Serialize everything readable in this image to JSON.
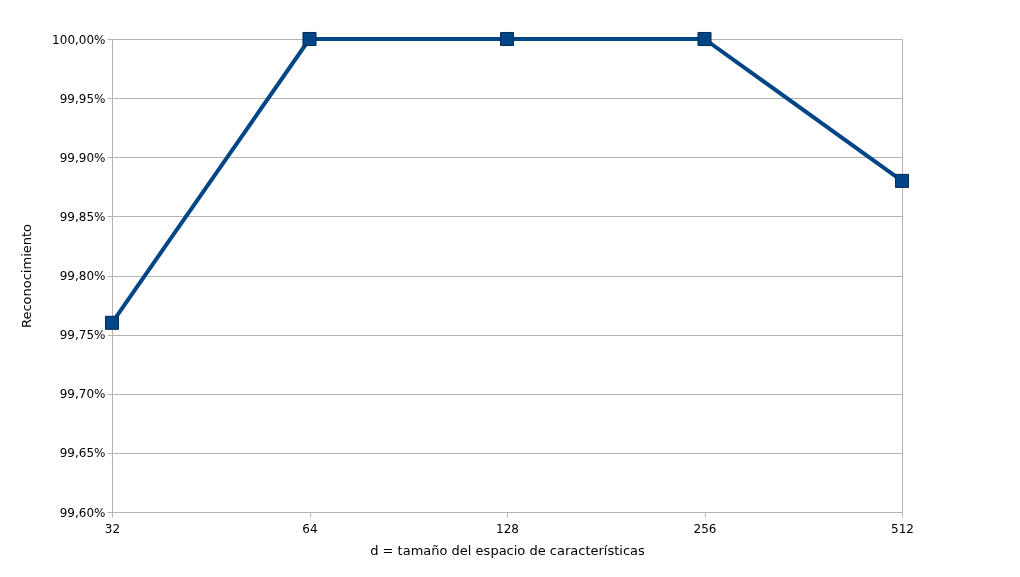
{
  "chart_data": {
    "type": "line",
    "xlabel": "d = tamaño del espacio de características",
    "ylabel": "Reconocimiento",
    "categories": [
      "32",
      "64",
      "128",
      "256",
      "512"
    ],
    "series": [
      {
        "color": "#004586",
        "values": [
          99.76,
          100.0,
          100.0,
          100.0,
          99.88
        ]
      }
    ],
    "ylim": [
      99.6,
      100.0
    ],
    "yticks": [
      {
        "value": 99.6,
        "label": "99,60%"
      },
      {
        "value": 99.65,
        "label": "99,65%"
      },
      {
        "value": 99.7,
        "label": "99,70%"
      },
      {
        "value": 99.75,
        "label": "99,75%"
      },
      {
        "value": 99.8,
        "label": "99,80%"
      },
      {
        "value": 99.85,
        "label": "99,85%"
      },
      {
        "value": 99.9,
        "label": "99,90%"
      },
      {
        "value": 99.95,
        "label": "99,95%"
      },
      {
        "value": 100.0,
        "label": "100,00%"
      }
    ],
    "grid": "y",
    "marker": "square",
    "line_style": "solid"
  }
}
